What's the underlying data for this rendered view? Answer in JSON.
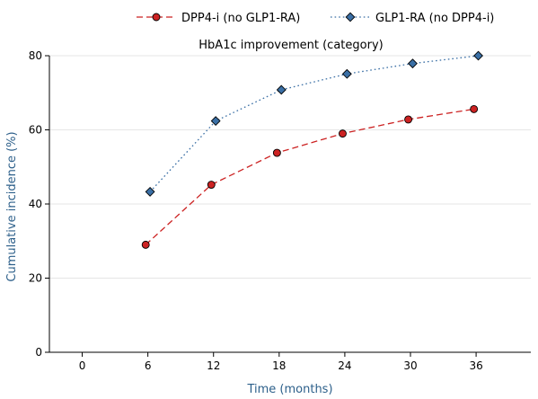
{
  "chart_data": {
    "type": "line",
    "title": "HbA1c improvement (category)",
    "xlabel": "Time (months)",
    "ylabel": "Cumulative incidence (%)",
    "xlim": [
      -3,
      41
    ],
    "ylim": [
      0,
      80
    ],
    "xticks": [
      0,
      6,
      12,
      18,
      24,
      30,
      36
    ],
    "yticks": [
      0,
      20,
      40,
      60,
      80
    ],
    "grid": "horizontal",
    "legend": "top",
    "series": [
      {
        "name": "DPP4-i (no GLP1-RA)",
        "color": "#cc2222",
        "marker": "circle",
        "line": "dashed",
        "points": [
          [
            5.8,
            29
          ],
          [
            11.8,
            45.2
          ],
          [
            17.8,
            53.8
          ],
          [
            23.8,
            59
          ],
          [
            29.8,
            62.8
          ],
          [
            35.8,
            65.6
          ]
        ]
      },
      {
        "name": "GLP1-RA (no DPP4-i)",
        "color": "#3a6fa5",
        "marker": "diamond",
        "line": "dotted",
        "points": [
          [
            6.2,
            43.3
          ],
          [
            12.2,
            62.4
          ],
          [
            18.2,
            70.8
          ],
          [
            24.2,
            75.1
          ],
          [
            30.2,
            77.9
          ],
          [
            36.2,
            80
          ]
        ]
      }
    ],
    "axis_title_color": "#2c5f8a"
  }
}
